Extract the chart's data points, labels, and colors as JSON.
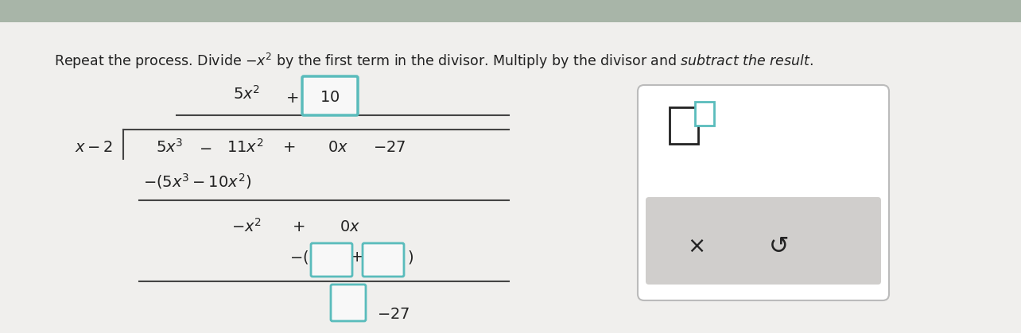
{
  "top_bar_color": "#a8b5a8",
  "bg_color": "#f0efed",
  "math_color": "#222222",
  "line_color": "#444444",
  "input_box_teal": "#5abcbc",
  "input_fill": "#f8f8f8",
  "panel_fill": "white",
  "panel_border": "#bbbbbb",
  "panel_gray_bar": "#d0cecc",
  "title_fontsize": 12.5,
  "math_fontsize": 14
}
